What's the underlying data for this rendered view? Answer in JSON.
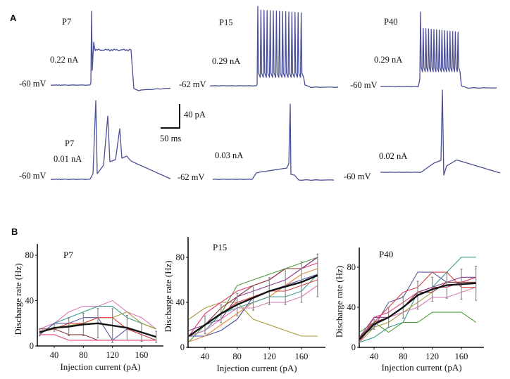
{
  "figure": {
    "panel_a_letter": "A",
    "panel_b_letter": "B",
    "trace_color": "#4a4f96",
    "scale_bar": {
      "vertical_label": "40 pA",
      "horizontal_label": "50 ms"
    },
    "traces": [
      {
        "age": "P7",
        "current": "0.22 nA",
        "rest": "-60 mV",
        "kind": "plateau"
      },
      {
        "age": "P15",
        "current": "0.29 nA",
        "rest": "-62 mV",
        "kind": "train"
      },
      {
        "age": "P40",
        "current": "0.29 nA",
        "rest": "-60 mV",
        "kind": "train-adapt"
      },
      {
        "age": "P7",
        "current": "0.01 nA",
        "rest": "-60 mV",
        "kind": "burst3"
      },
      {
        "age": "",
        "current": "0.03 nA",
        "rest": "-62 mV",
        "kind": "single-late"
      },
      {
        "age": "",
        "current": "0.02 nA",
        "rest": "-60 mV",
        "kind": "single-mid"
      }
    ]
  },
  "chart_data": [
    {
      "type": "line",
      "title": "P7",
      "xlabel": "Injection current (pA)",
      "ylabel": "Discharge rate (Hz)",
      "xticks": [
        40,
        80,
        120,
        160
      ],
      "yticks": [
        0,
        40,
        80
      ],
      "xlim": [
        20,
        190
      ],
      "ylim": [
        0,
        90
      ],
      "x": [
        20,
        40,
        60,
        80,
        100,
        120,
        140,
        160,
        180
      ],
      "series": [
        {
          "name": "cell-pink",
          "color": "#d67bb5",
          "values": [
            15,
            20,
            30,
            35,
            35,
            40,
            30,
            25,
            15
          ]
        },
        {
          "name": "cell-teal",
          "color": "#3d9a8c",
          "values": [
            10,
            20,
            25,
            30,
            35,
            35,
            25,
            20,
            15
          ]
        },
        {
          "name": "cell-blue",
          "color": "#5a5a9e",
          "values": [
            10,
            20,
            20,
            25,
            25,
            5,
            15,
            10,
            5
          ]
        },
        {
          "name": "cell-olive",
          "color": "#a89a3a",
          "values": [
            12,
            15,
            18,
            20,
            25,
            25,
            30,
            20,
            15
          ]
        },
        {
          "name": "cell-red",
          "color": "#d94040",
          "values": [
            13,
            15,
            20,
            20,
            25,
            25,
            15,
            10,
            5
          ]
        },
        {
          "name": "cell-maroon",
          "color": "#8e3a3a",
          "values": [
            15,
            15,
            10,
            10,
            5,
            5,
            5,
            5,
            5
          ]
        },
        {
          "name": "cell-magenta",
          "color": "#e0407a",
          "values": [
            10,
            10,
            5,
            5,
            5,
            5,
            5,
            5,
            5
          ]
        },
        {
          "name": "mean",
          "color": "#111111",
          "values": [
            12,
            16,
            17,
            19,
            20,
            18,
            16,
            12,
            8
          ],
          "err": [
            3,
            3,
            8,
            10,
            13,
            15,
            11,
            8,
            5
          ]
        }
      ]
    },
    {
      "type": "line",
      "title": "P15",
      "xlabel": "Injection current (pA)",
      "ylabel": "Discharge rate (Hz)",
      "xticks": [
        40,
        80,
        120,
        160
      ],
      "yticks": [
        0,
        40,
        80
      ],
      "xlim": [
        20,
        195
      ],
      "ylim": [
        0,
        100
      ],
      "x": [
        20,
        40,
        60,
        80,
        100,
        120,
        140,
        160,
        180
      ],
      "series": [
        {
          "name": "cell-green",
          "color": "#4f9a3c",
          "values": [
            5,
            20,
            30,
            55,
            60,
            65,
            70,
            75,
            80
          ]
        },
        {
          "name": "cell-olive",
          "color": "#a89a3a",
          "values": [
            25,
            35,
            40,
            40,
            25,
            20,
            15,
            10,
            10
          ]
        },
        {
          "name": "cell-magenta",
          "color": "#e0407a",
          "values": [
            10,
            30,
            40,
            50,
            55,
            60,
            70,
            70,
            75
          ]
        },
        {
          "name": "cell-maroon",
          "color": "#8e3a3a",
          "values": [
            10,
            20,
            35,
            45,
            55,
            60,
            70,
            70,
            80
          ]
        },
        {
          "name": "cell-purple",
          "color": "#8a3c8a",
          "values": [
            15,
            20,
            25,
            45,
            50,
            55,
            60,
            70,
            80
          ]
        },
        {
          "name": "cell-blue",
          "color": "#4a4aa0",
          "values": [
            10,
            10,
            15,
            25,
            45,
            50,
            55,
            60,
            65
          ]
        },
        {
          "name": "cell-orange",
          "color": "#e08a3a",
          "values": [
            5,
            10,
            20,
            30,
            40,
            45,
            55,
            65,
            70
          ]
        },
        {
          "name": "cell-teal",
          "color": "#3d9a8c",
          "values": [
            10,
            15,
            30,
            35,
            40,
            45,
            45,
            50,
            65
          ]
        },
        {
          "name": "cell-pink",
          "color": "#d67bb5",
          "values": [
            10,
            15,
            25,
            35,
            35,
            40,
            40,
            45,
            55
          ]
        },
        {
          "name": "cell-red",
          "color": "#d94040",
          "values": [
            10,
            20,
            30,
            40,
            45,
            50,
            50,
            55,
            60
          ]
        },
        {
          "name": "mean",
          "color": "#111111",
          "values": [
            10,
            20,
            30,
            38,
            44,
            50,
            54,
            58,
            64
          ],
          "err": [
            0,
            8,
            8,
            10,
            11,
            12,
            16,
            18,
            19
          ]
        }
      ]
    },
    {
      "type": "line",
      "title": "P40",
      "xlabel": "Injection current (pA)",
      "ylabel": "Discharge rate (Hz)",
      "xticks": [
        40,
        80,
        120,
        160
      ],
      "yticks": [
        0,
        40,
        80
      ],
      "xlim": [
        20,
        195
      ],
      "ylim": [
        0,
        100
      ],
      "x": [
        20,
        40,
        60,
        80,
        100,
        120,
        140,
        160,
        180
      ],
      "series": [
        {
          "name": "cell-teal",
          "color": "#3d9a8c",
          "values": [
            5,
            10,
            20,
            25,
            55,
            60,
            75,
            90,
            90
          ]
        },
        {
          "name": "cell-green",
          "color": "#4f9a3c",
          "values": [
            15,
            25,
            15,
            25,
            25,
            35,
            35,
            35,
            25
          ]
        },
        {
          "name": "cell-blue",
          "color": "#5a5a9e",
          "values": [
            10,
            20,
            45,
            50,
            75,
            75,
            65,
            65,
            70
          ]
        },
        {
          "name": "cell-red",
          "color": "#d94040",
          "values": [
            10,
            25,
            40,
            55,
            60,
            75,
            75,
            60,
            60
          ]
        },
        {
          "name": "cell-magenta",
          "color": "#e0407a",
          "values": [
            5,
            30,
            35,
            45,
            55,
            60,
            60,
            65,
            70
          ]
        },
        {
          "name": "cell-purple",
          "color": "#8a3c8a",
          "values": [
            10,
            30,
            30,
            40,
            55,
            60,
            65,
            70,
            70
          ]
        },
        {
          "name": "cell-olive",
          "color": "#a89a3a",
          "values": [
            5,
            20,
            25,
            35,
            45,
            55,
            65,
            65,
            65
          ]
        },
        {
          "name": "cell-pink",
          "color": "#d67bb5",
          "values": [
            5,
            25,
            30,
            35,
            40,
            50,
            50,
            55,
            60
          ]
        },
        {
          "name": "cell-maroon",
          "color": "#8e3a3a",
          "values": [
            10,
            25,
            30,
            40,
            55,
            55,
            65,
            65,
            65
          ]
        },
        {
          "name": "mean",
          "color": "#111111",
          "values": [
            8,
            23,
            30,
            40,
            52,
            58,
            62,
            63,
            64
          ],
          "err": [
            0,
            5,
            10,
            11,
            14,
            12,
            13,
            15,
            17
          ]
        }
      ]
    }
  ]
}
